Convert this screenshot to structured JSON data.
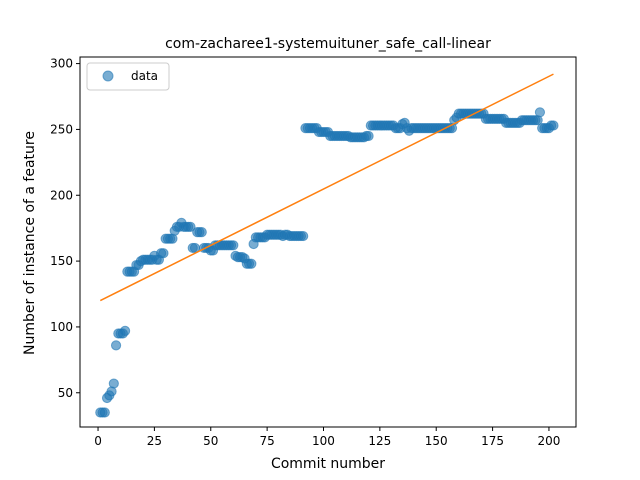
{
  "chart_data": {
    "type": "scatter",
    "title": "com-zacharee1-systemuituner_safe_call-linear",
    "xlabel": "Commit number",
    "ylabel": "Number of instance of a feature",
    "xlim": [
      -8,
      212
    ],
    "ylim": [
      24,
      305
    ],
    "xticks": [
      0,
      25,
      50,
      75,
      100,
      125,
      150,
      175,
      200
    ],
    "yticks": [
      50,
      100,
      150,
      200,
      250,
      300
    ],
    "grid": false,
    "legend": {
      "placement": "upper-left",
      "entries": [
        "data"
      ]
    },
    "colors": {
      "points": "#1f77b4",
      "fit": "#ff7f0e"
    },
    "series": [
      {
        "name": "data",
        "kind": "scatter",
        "points": [
          [
            1,
            35
          ],
          [
            2,
            35
          ],
          [
            3,
            35
          ],
          [
            4,
            46
          ],
          [
            5,
            48
          ],
          [
            6,
            51
          ],
          [
            7,
            57
          ],
          [
            8,
            86
          ],
          [
            9,
            95
          ],
          [
            10,
            95
          ],
          [
            11,
            95
          ],
          [
            12,
            97
          ],
          [
            13,
            142
          ],
          [
            14,
            142
          ],
          [
            15,
            142
          ],
          [
            16,
            142
          ],
          [
            17,
            147
          ],
          [
            18,
            147
          ],
          [
            19,
            150
          ],
          [
            20,
            151
          ],
          [
            21,
            151
          ],
          [
            22,
            151
          ],
          [
            23,
            151
          ],
          [
            24,
            151
          ],
          [
            25,
            154
          ],
          [
            26,
            151
          ],
          [
            27,
            151
          ],
          [
            28,
            156
          ],
          [
            29,
            156
          ],
          [
            30,
            167
          ],
          [
            31,
            167
          ],
          [
            32,
            167
          ],
          [
            33,
            167
          ],
          [
            34,
            173
          ],
          [
            35,
            176
          ],
          [
            36,
            176
          ],
          [
            37,
            179
          ],
          [
            38,
            176
          ],
          [
            39,
            176
          ],
          [
            40,
            176
          ],
          [
            41,
            176
          ],
          [
            42,
            160
          ],
          [
            43,
            160
          ],
          [
            44,
            172
          ],
          [
            45,
            172
          ],
          [
            46,
            172
          ],
          [
            47,
            160
          ],
          [
            48,
            160
          ],
          [
            49,
            160
          ],
          [
            50,
            158
          ],
          [
            51,
            158
          ],
          [
            52,
            162
          ],
          [
            53,
            162
          ],
          [
            54,
            162
          ],
          [
            55,
            162
          ],
          [
            56,
            162
          ],
          [
            57,
            162
          ],
          [
            58,
            162
          ],
          [
            59,
            162
          ],
          [
            60,
            162
          ],
          [
            61,
            154
          ],
          [
            62,
            153
          ],
          [
            63,
            153
          ],
          [
            64,
            153
          ],
          [
            65,
            152
          ],
          [
            66,
            148
          ],
          [
            67,
            148
          ],
          [
            68,
            148
          ],
          [
            69,
            163
          ],
          [
            70,
            168
          ],
          [
            71,
            168
          ],
          [
            72,
            168
          ],
          [
            73,
            168
          ],
          [
            74,
            168
          ],
          [
            75,
            170
          ],
          [
            76,
            170
          ],
          [
            77,
            170
          ],
          [
            78,
            170
          ],
          [
            79,
            170
          ],
          [
            80,
            170
          ],
          [
            81,
            170
          ],
          [
            82,
            169
          ],
          [
            83,
            170
          ],
          [
            84,
            170
          ],
          [
            85,
            169
          ],
          [
            86,
            169
          ],
          [
            87,
            169
          ],
          [
            88,
            169
          ],
          [
            89,
            169
          ],
          [
            90,
            169
          ],
          [
            91,
            169
          ],
          [
            92,
            251
          ],
          [
            93,
            251
          ],
          [
            94,
            251
          ],
          [
            95,
            251
          ],
          [
            96,
            251
          ],
          [
            97,
            251
          ],
          [
            98,
            248
          ],
          [
            99,
            248
          ],
          [
            100,
            248
          ],
          [
            101,
            248
          ],
          [
            102,
            248
          ],
          [
            103,
            245
          ],
          [
            104,
            245
          ],
          [
            105,
            245
          ],
          [
            106,
            245
          ],
          [
            107,
            245
          ],
          [
            108,
            245
          ],
          [
            109,
            245
          ],
          [
            110,
            245
          ],
          [
            111,
            245
          ],
          [
            112,
            244
          ],
          [
            113,
            244
          ],
          [
            114,
            244
          ],
          [
            115,
            244
          ],
          [
            116,
            244
          ],
          [
            117,
            244
          ],
          [
            118,
            244
          ],
          [
            119,
            245
          ],
          [
            120,
            245
          ],
          [
            121,
            253
          ],
          [
            122,
            253
          ],
          [
            123,
            253
          ],
          [
            124,
            253
          ],
          [
            125,
            253
          ],
          [
            126,
            253
          ],
          [
            127,
            253
          ],
          [
            128,
            253
          ],
          [
            129,
            253
          ],
          [
            130,
            253
          ],
          [
            131,
            253
          ],
          [
            132,
            251
          ],
          [
            133,
            251
          ],
          [
            134,
            251
          ],
          [
            135,
            254
          ],
          [
            136,
            255
          ],
          [
            137,
            251
          ],
          [
            138,
            249
          ],
          [
            139,
            251
          ],
          [
            140,
            251
          ],
          [
            141,
            251
          ],
          [
            142,
            251
          ],
          [
            143,
            251
          ],
          [
            144,
            251
          ],
          [
            145,
            251
          ],
          [
            146,
            251
          ],
          [
            147,
            251
          ],
          [
            148,
            251
          ],
          [
            149,
            251
          ],
          [
            150,
            251
          ],
          [
            151,
            251
          ],
          [
            152,
            251
          ],
          [
            153,
            251
          ],
          [
            154,
            251
          ],
          [
            155,
            251
          ],
          [
            156,
            251
          ],
          [
            157,
            251
          ],
          [
            158,
            257
          ],
          [
            159,
            259
          ],
          [
            160,
            262
          ],
          [
            161,
            262
          ],
          [
            162,
            262
          ],
          [
            163,
            262
          ],
          [
            164,
            262
          ],
          [
            165,
            262
          ],
          [
            166,
            262
          ],
          [
            167,
            262
          ],
          [
            168,
            262
          ],
          [
            169,
            262
          ],
          [
            170,
            262
          ],
          [
            171,
            262
          ],
          [
            172,
            258
          ],
          [
            173,
            258
          ],
          [
            174,
            258
          ],
          [
            175,
            258
          ],
          [
            176,
            258
          ],
          [
            177,
            258
          ],
          [
            178,
            258
          ],
          [
            179,
            258
          ],
          [
            180,
            258
          ],
          [
            181,
            255
          ],
          [
            182,
            255
          ],
          [
            183,
            255
          ],
          [
            184,
            255
          ],
          [
            185,
            255
          ],
          [
            186,
            255
          ],
          [
            187,
            255
          ],
          [
            188,
            257
          ],
          [
            189,
            257
          ],
          [
            190,
            257
          ],
          [
            191,
            257
          ],
          [
            192,
            257
          ],
          [
            193,
            257
          ],
          [
            194,
            257
          ],
          [
            195,
            257
          ],
          [
            196,
            263
          ],
          [
            197,
            251
          ],
          [
            198,
            251
          ],
          [
            199,
            251
          ],
          [
            200,
            251
          ],
          [
            201,
            253
          ],
          [
            202,
            253
          ]
        ]
      },
      {
        "kind": "line",
        "points": [
          [
            1,
            120
          ],
          [
            202,
            292
          ]
        ]
      }
    ]
  }
}
